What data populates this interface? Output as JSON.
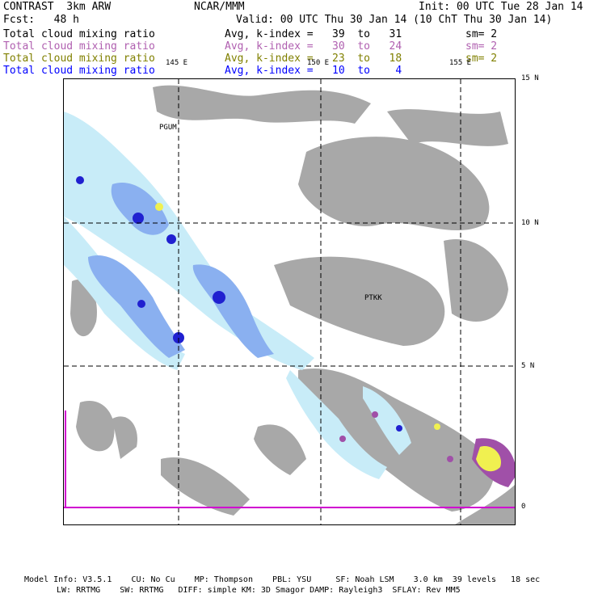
{
  "header": {
    "left_title": "CONTRAST  3km ARW",
    "center_title": "NCAR/MMM",
    "init": "Init: 00 UTC Tue 28 Jan 14",
    "forecast": "Fcst:   48 h",
    "valid": "Valid: 00 UTC Thu 30 Jan 14 (10 ChT Thu 30 Jan 14)"
  },
  "legend": [
    {
      "field": "Total cloud mixing ratio",
      "range": "Avg, k-index =   39  to   31",
      "smoothing": "sm= 2",
      "color": "#000000"
    },
    {
      "field": "Total cloud mixing ratio",
      "range": "Avg, k-index =   30  to   24",
      "smoothing": "sm= 2",
      "color": "#b060b0"
    },
    {
      "field": "Total cloud mixing ratio",
      "range": "Avg, k-index =   23  to   18",
      "smoothing": "sm= 2",
      "color": "#808000"
    },
    {
      "field": "Total cloud mixing ratio",
      "range": "Avg, k-index =   10  to    4",
      "smoothing": "",
      "color": "#0000ff"
    }
  ],
  "map": {
    "lon_labels": [
      "145 E",
      "150 E",
      "155 E"
    ],
    "lat_labels": [
      "15 N",
      "10 N",
      "5 N",
      "0"
    ],
    "stations": [
      "PGUM",
      "PTKK"
    ]
  },
  "footer": {
    "line1": "Model Info: V3.5.1    CU: No Cu    MP: Thompson    PBL: YSU     SF: Noah LSM    3.0 km  39 levels   18 sec",
    "line2": "LW: RRTMG    SW: RRTMG   DIFF: simple KM: 3D Smagor DAMP: Rayleigh3  SFLAY: Rev MM5"
  }
}
